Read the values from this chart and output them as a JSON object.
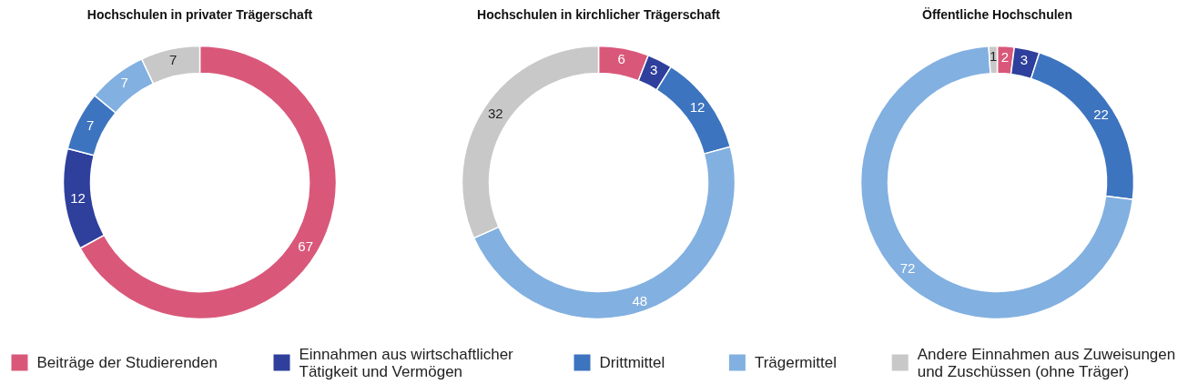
{
  "chart_data": [
    {
      "type": "donut",
      "title": "Hochschulen in privater Trägerschaft",
      "categories": [
        "Beiträge der Studierenden",
        "Einnahmen aus wirtschaftlicher Tätigkeit und Vermögen",
        "Drittmittel",
        "Trägermittel",
        "Andere Einnahmen aus Zuweisungen und Zuschüssen (ohne Träger)"
      ],
      "values": [
        67,
        12,
        7,
        7,
        7
      ],
      "colors": [
        "#d9587a",
        "#2e3f9c",
        "#3d74bf",
        "#82b0e0",
        "#c8c8c8"
      ],
      "data_labels": true,
      "legend": "bottom"
    },
    {
      "type": "donut",
      "title": "Hochschulen in kirchlicher Trägerschaft",
      "values": [
        6,
        3,
        12,
        48,
        32
      ],
      "colors": [
        "#d9587a",
        "#2e3f9c",
        "#3d74bf",
        "#82b0e0",
        "#c8c8c8"
      ],
      "data_labels": true
    },
    {
      "type": "donut",
      "title": "Öffentliche Hochschulen",
      "values": [
        2,
        3,
        22,
        72,
        1
      ],
      "colors": [
        "#d9587a",
        "#2e3f9c",
        "#3d74bf",
        "#82b0e0",
        "#c8c8c8"
      ],
      "data_labels": true
    }
  ]
}
